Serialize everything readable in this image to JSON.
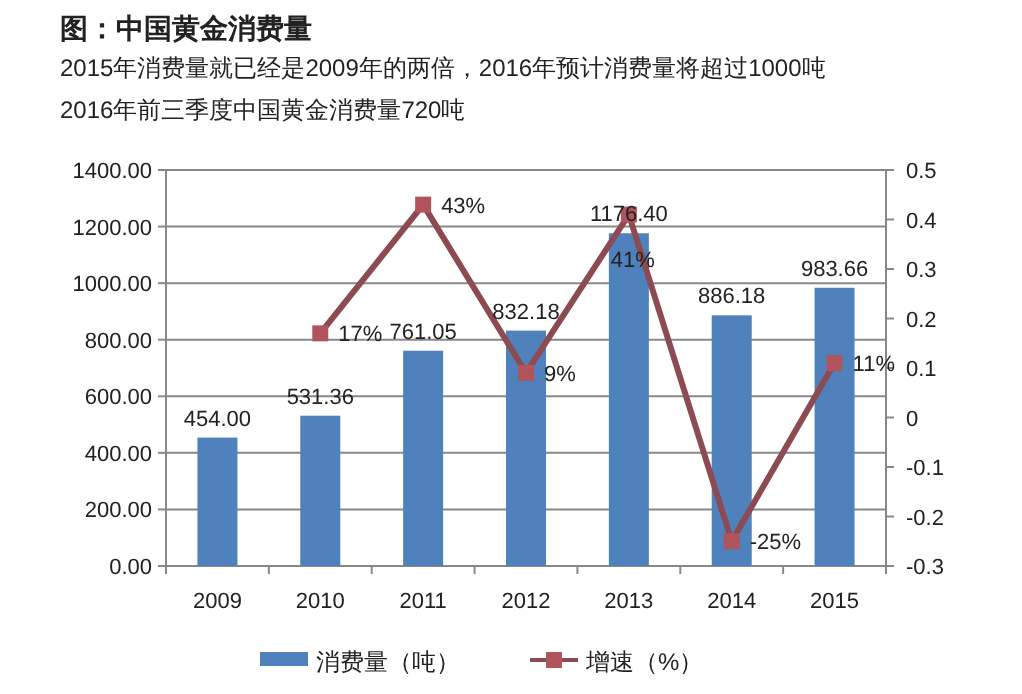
{
  "chart_data": {
    "type": "bar",
    "title": "图：中国黄金消费量",
    "subtitle": "2015年消费量就已经是2009年的两倍，2016年预计消费量将超过1000吨\n2016年前三季度中国黄金消费量720吨",
    "categories": [
      "2009",
      "2010",
      "2011",
      "2012",
      "2013",
      "2014",
      "2015"
    ],
    "series": [
      {
        "name": "消费量（吨）",
        "color": "#4f81bd",
        "values": [
          454.0,
          531.36,
          761.05,
          832.18,
          1176.4,
          886.18,
          983.66
        ],
        "value_labels": [
          "454.00",
          "531.36",
          "761.05",
          "832.18",
          "1176.40",
          "886.18",
          "983.66"
        ]
      },
      {
        "name": "增速（%）",
        "type": "line",
        "axis": "y2",
        "color": "#8c4b52",
        "values": [
          null,
          0.17,
          0.43,
          0.09,
          0.41,
          -0.25,
          0.11
        ],
        "value_labels": [
          null,
          "17%",
          "43%",
          "9%",
          "41%",
          "-25%",
          "11%"
        ]
      }
    ],
    "ylim": [
      0,
      1400
    ],
    "yticks": [
      {
        "value": 0,
        "label": "0.00"
      },
      {
        "value": 200,
        "label": "200.00"
      },
      {
        "value": 400,
        "label": "400.00"
      },
      {
        "value": 600,
        "label": "600.00"
      },
      {
        "value": 800,
        "label": "800.00"
      },
      {
        "value": 1000,
        "label": "1000.00"
      },
      {
        "value": 1200,
        "label": "1200.00"
      },
      {
        "value": 1400,
        "label": "1400.00"
      }
    ],
    "y2lim": [
      -0.3,
      0.5
    ],
    "y2ticks": [
      -0.3,
      -0.2,
      -0.1,
      0,
      0.1,
      0.2,
      0.3,
      0.4,
      0.5
    ],
    "grid": "y",
    "legend": "bottom",
    "marker": "square"
  }
}
